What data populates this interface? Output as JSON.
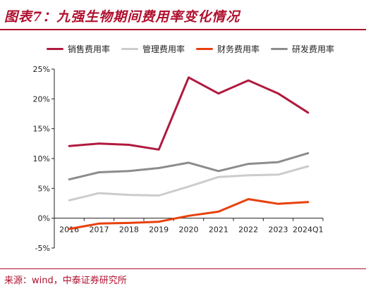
{
  "header": {
    "title": "图表7：九强生物期间费用率变化情况"
  },
  "footer": {
    "source": "来源：wind，中泰证券研究所"
  },
  "colors": {
    "sales": "#b01a3e",
    "admin": "#cccccc",
    "finance": "#e8400c",
    "rnd": "#8c8c8c",
    "accent": "#b0102e"
  },
  "chart_data": {
    "type": "line",
    "categories": [
      "2016",
      "2017",
      "2018",
      "2019",
      "2020",
      "2021",
      "2022",
      "2023",
      "2024Q1"
    ],
    "series": [
      {
        "name": "销售费用率",
        "values": [
          12.1,
          12.5,
          12.3,
          11.5,
          23.6,
          20.9,
          23.1,
          20.9,
          17.7
        ]
      },
      {
        "name": "管理费用率",
        "values": [
          3.0,
          4.2,
          3.9,
          3.8,
          5.3,
          6.9,
          7.2,
          7.3,
          8.7
        ]
      },
      {
        "name": "财务费用率",
        "values": [
          -1.8,
          -0.9,
          -0.8,
          -0.6,
          0.4,
          1.1,
          3.2,
          2.4,
          2.7
        ]
      },
      {
        "name": "研发费用率",
        "values": [
          6.5,
          7.7,
          7.9,
          8.4,
          9.3,
          7.9,
          9.1,
          9.4,
          10.9
        ]
      }
    ],
    "yticks": [
      "25%",
      "20%",
      "15%",
      "10%",
      "5%",
      "0%",
      "-5%"
    ],
    "ylim": [
      -5,
      25
    ],
    "legend_position": "top"
  }
}
